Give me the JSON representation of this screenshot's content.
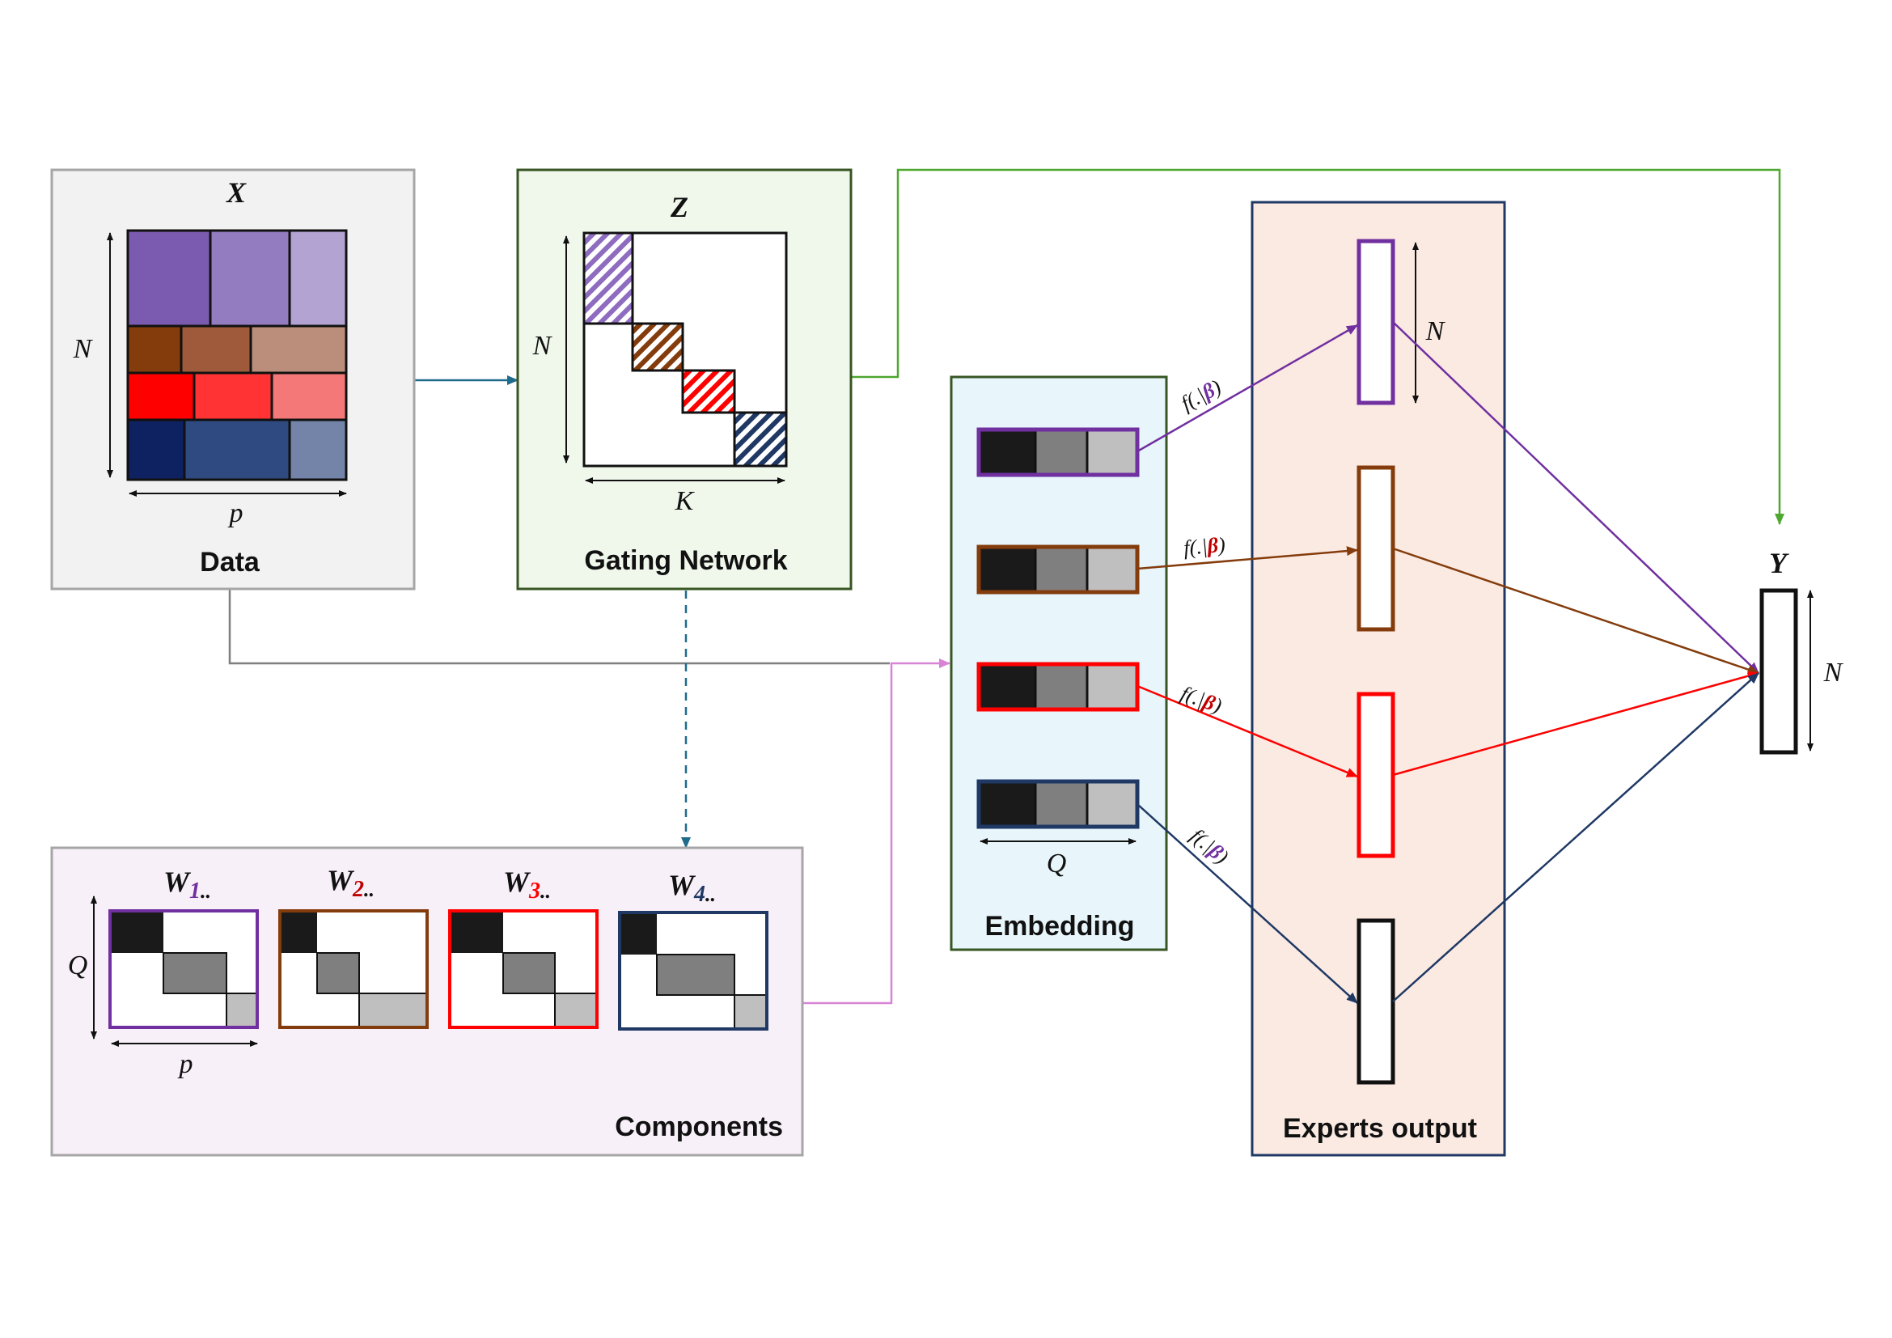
{
  "panels": {
    "data": {
      "title": "Data",
      "matrix_symbol": "X",
      "rows_symbol": "N",
      "cols_symbol": "p"
    },
    "gating": {
      "title": "Gating Network",
      "matrix_symbol": "Z",
      "rows_symbol": "N",
      "cols_symbol": "K"
    },
    "components": {
      "title": "Components",
      "rows_symbol": "Q",
      "cols_symbol": "p",
      "weights": [
        {
          "symbol": "W",
          "subscript": "1",
          "suffix": "..",
          "color": "#7030A0"
        },
        {
          "symbol": "W",
          "subscript": "2",
          "suffix": "..",
          "color": "#C00000"
        },
        {
          "symbol": "W",
          "subscript": "3",
          "suffix": "..",
          "color": "#FF0000"
        },
        {
          "symbol": "W",
          "subscript": "4",
          "suffix": "..",
          "color": "#1F3864"
        }
      ]
    },
    "embedding": {
      "title": "Embedding",
      "width_symbol": "Q"
    },
    "experts": {
      "title": "Experts output",
      "height_symbol": "N"
    },
    "output": {
      "symbol": "Y",
      "height_symbol": "N"
    }
  },
  "functions": [
    {
      "prefix": "f(.|",
      "param": "β",
      "suffix": ")",
      "param_color": "#7030A0"
    },
    {
      "prefix": "f(.|",
      "param": "β",
      "suffix": ")",
      "param_color": "#C00000"
    },
    {
      "prefix": "f(.|",
      "param": "β",
      "suffix": ")",
      "param_color": "#C00000"
    },
    {
      "prefix": "f(.|",
      "param": "β",
      "suffix": ")",
      "param_color": "#7030A0"
    }
  ],
  "colors": {
    "purple": "#7030A0",
    "brown": "#843C0C",
    "red": "#FF0000",
    "navy": "#1F3864",
    "data_panel_bg": "#F2F2F2",
    "gating_panel_bg": "#F0F8EC",
    "components_panel_bg": "#F8F0F8",
    "embedding_panel_bg": "#E8F6FB",
    "experts_panel_bg": "#FBEAE2",
    "green_line": "#4EA72E",
    "teal_line": "#1F6B8C",
    "pink_line": "#D883D6",
    "gray_line": "#7F7F7F"
  }
}
